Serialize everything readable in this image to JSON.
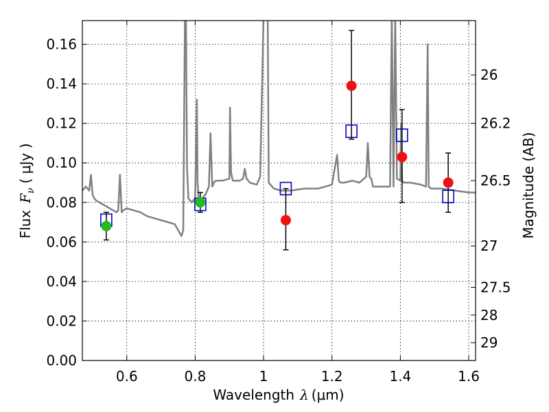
{
  "chart_data": {
    "type": "scatter",
    "xlabel_prefix": "Wavelength",
    "xlabel_symbol": "λ",
    "xlabel_unit": "(μm)",
    "ylabel_prefix": "Flux",
    "ylabel_symbol": "F",
    "ylabel_subscript": "ν",
    "ylabel_unit": "( μJy )",
    "y2label": "Magnitude (AB)",
    "xlim": [
      0.47,
      1.62
    ],
    "ylim": [
      0.0,
      0.172
    ],
    "grid": true,
    "x_ticks": [
      0.6,
      0.8,
      1.0,
      1.2,
      1.4,
      1.6
    ],
    "x_tick_labels": [
      "0.6",
      "0.8",
      "1",
      "1.2",
      "1.4",
      "1.6"
    ],
    "y_ticks": [
      0.0,
      0.02,
      0.04,
      0.06,
      0.08,
      0.1,
      0.12,
      0.14,
      0.16
    ],
    "y_tick_labels": [
      "0.00",
      "0.02",
      "0.04",
      "0.06",
      "0.08",
      "0.10",
      "0.12",
      "0.14",
      "0.16"
    ],
    "y2_ticks": [
      {
        "flux": 0.1445,
        "label": "26"
      },
      {
        "flux": 0.12,
        "label": "26.2"
      },
      {
        "flux": 0.091,
        "label": "26.5"
      },
      {
        "flux": 0.058,
        "label": "27"
      },
      {
        "flux": 0.037,
        "label": "27.5"
      },
      {
        "flux": 0.023,
        "label": "28"
      },
      {
        "flux": 0.009,
        "label": "29"
      }
    ],
    "series": [
      {
        "name": "template spectrum",
        "kind": "line",
        "color": "#808080",
        "x": [
          0.47,
          0.48,
          0.49,
          0.495,
          0.5,
          0.505,
          0.51,
          0.52,
          0.53,
          0.54,
          0.55,
          0.56,
          0.57,
          0.575,
          0.58,
          0.585,
          0.59,
          0.6,
          0.62,
          0.64,
          0.66,
          0.68,
          0.7,
          0.72,
          0.74,
          0.76,
          0.765,
          0.77,
          0.773,
          0.776,
          0.78,
          0.79,
          0.8,
          0.805,
          0.807,
          0.81,
          0.82,
          0.83,
          0.84,
          0.845,
          0.85,
          0.855,
          0.86,
          0.88,
          0.9,
          0.902,
          0.905,
          0.91,
          0.93,
          0.94,
          0.945,
          0.95,
          0.96,
          0.98,
          0.99,
          1.0,
          1.004,
          1.012,
          1.015,
          1.03,
          1.05,
          1.08,
          1.12,
          1.16,
          1.2,
          1.215,
          1.22,
          1.225,
          1.235,
          1.26,
          1.28,
          1.3,
          1.305,
          1.31,
          1.315,
          1.32,
          1.34,
          1.37,
          1.375,
          1.38,
          1.385,
          1.39,
          1.4,
          1.402,
          1.405,
          1.41,
          1.43,
          1.46,
          1.475,
          1.48,
          1.483,
          1.49,
          1.52,
          1.56,
          1.6,
          1.62
        ],
        "y": [
          0.086,
          0.088,
          0.086,
          0.094,
          0.084,
          0.082,
          0.081,
          0.08,
          0.079,
          0.078,
          0.077,
          0.076,
          0.075,
          0.076,
          0.094,
          0.075,
          0.076,
          0.077,
          0.076,
          0.075,
          0.073,
          0.072,
          0.071,
          0.07,
          0.069,
          0.063,
          0.066,
          0.175,
          0.175,
          0.098,
          0.082,
          0.08,
          0.082,
          0.132,
          0.09,
          0.082,
          0.082,
          0.084,
          0.088,
          0.115,
          0.088,
          0.09,
          0.091,
          0.091,
          0.092,
          0.128,
          0.095,
          0.091,
          0.091,
          0.092,
          0.097,
          0.092,
          0.09,
          0.089,
          0.093,
          0.175,
          0.175,
          0.175,
          0.09,
          0.087,
          0.086,
          0.086,
          0.087,
          0.087,
          0.089,
          0.104,
          0.091,
          0.09,
          0.09,
          0.091,
          0.09,
          0.093,
          0.11,
          0.093,
          0.092,
          0.088,
          0.088,
          0.088,
          0.175,
          0.088,
          0.175,
          0.092,
          0.091,
          0.12,
          0.091,
          0.09,
          0.09,
          0.089,
          0.088,
          0.16,
          0.088,
          0.087,
          0.087,
          0.086,
          0.085,
          0.085
        ]
      },
      {
        "name": "green photometry",
        "kind": "points",
        "color": "#22bb22",
        "x": [
          0.54,
          0.815
        ],
        "y": [
          0.068,
          0.08
        ]
      },
      {
        "name": "red photometry",
        "kind": "points",
        "color": "#ee1111",
        "x": [
          1.065,
          1.257,
          1.405,
          1.54
        ],
        "y": [
          0.071,
          0.139,
          0.103,
          0.09
        ]
      },
      {
        "name": "model fluxes",
        "kind": "squares",
        "color": "#0000cc",
        "x": [
          0.54,
          0.815,
          1.065,
          1.257,
          1.405,
          1.54
        ],
        "y": [
          0.071,
          0.079,
          0.087,
          0.116,
          0.114,
          0.083
        ]
      }
    ],
    "error_bars": [
      {
        "x": 0.54,
        "low": 0.061,
        "high": 0.075
      },
      {
        "x": 0.815,
        "low": 0.075,
        "high": 0.085
      },
      {
        "x": 1.065,
        "low": 0.056,
        "high": 0.087
      },
      {
        "x": 1.257,
        "low": 0.112,
        "high": 0.167
      },
      {
        "x": 1.405,
        "low": 0.08,
        "high": 0.127
      },
      {
        "x": 1.54,
        "low": 0.075,
        "high": 0.105
      }
    ]
  }
}
